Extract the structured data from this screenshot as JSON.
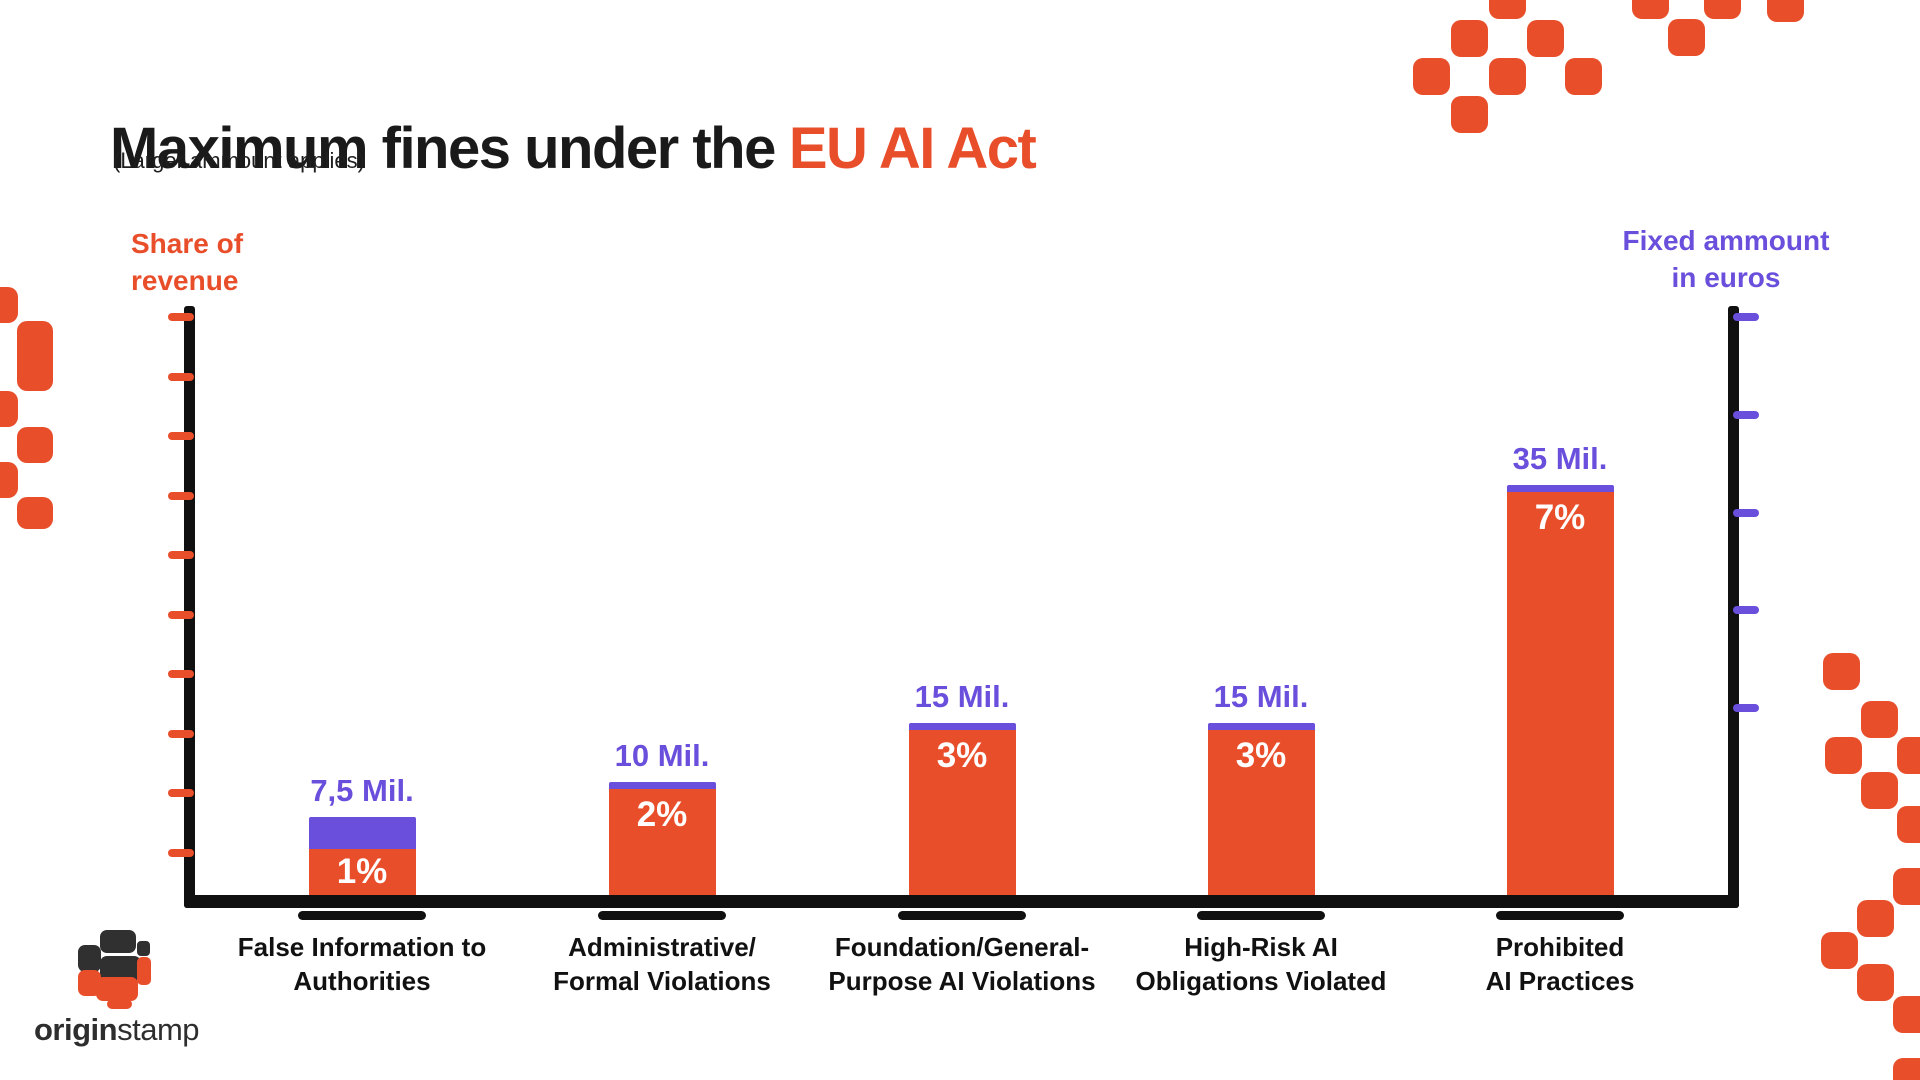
{
  "title": {
    "text_black": "Maximum fines under the",
    "text_accent": "EU AI Act"
  },
  "subtitle": "(Larger ammount applies)",
  "left_axis_label": {
    "line1": "Share of",
    "line2": "revenue"
  },
  "right_axis_label": {
    "line1": "Fixed ammount",
    "line2": "in euros"
  },
  "logo": {
    "name": "originstamp",
    "bold": "origin",
    "regular": "stamp"
  },
  "colors": {
    "orange": "#E94E2B",
    "purple": "#6A4EDC",
    "axis_black": "#101010",
    "logo_dark": "#303030"
  },
  "chart_data": {
    "type": "bar",
    "title": "Maximum fines under the EU AI Act",
    "note": "Larger ammount applies",
    "categories": [
      [
        "False Information to",
        "Authorities"
      ],
      [
        "Administrative/",
        "Formal Violations"
      ],
      [
        "Foundation/General-",
        "Purpose AI Violations"
      ],
      [
        "High-Risk AI",
        "Obligations Violated"
      ],
      [
        "Prohibited",
        "AI Practices"
      ]
    ],
    "series": [
      {
        "name": "Share of revenue",
        "unit": "% of revenue",
        "values": [
          1,
          2,
          3,
          3,
          7
        ],
        "labels": [
          "1%",
          "2%",
          "3%",
          "3%",
          "7%"
        ],
        "color": "#E94E2B"
      },
      {
        "name": "Fixed ammount in euros",
        "unit": "million EUR",
        "values": [
          7.5,
          10,
          15,
          15,
          35
        ],
        "labels": [
          "7,5 Mil.",
          "10 Mil.",
          "15 Mil.",
          "15 Mil.",
          "35 Mil."
        ],
        "color": "#6A4EDC"
      }
    ],
    "left_axis": {
      "label": "Share of revenue",
      "tick_count": 10,
      "tick_interval": 1,
      "range": [
        0,
        10
      ]
    },
    "right_axis": {
      "label": "Fixed ammount in euros",
      "tick_count": 5
    },
    "grid": false,
    "legend_position": "axis-labels"
  }
}
